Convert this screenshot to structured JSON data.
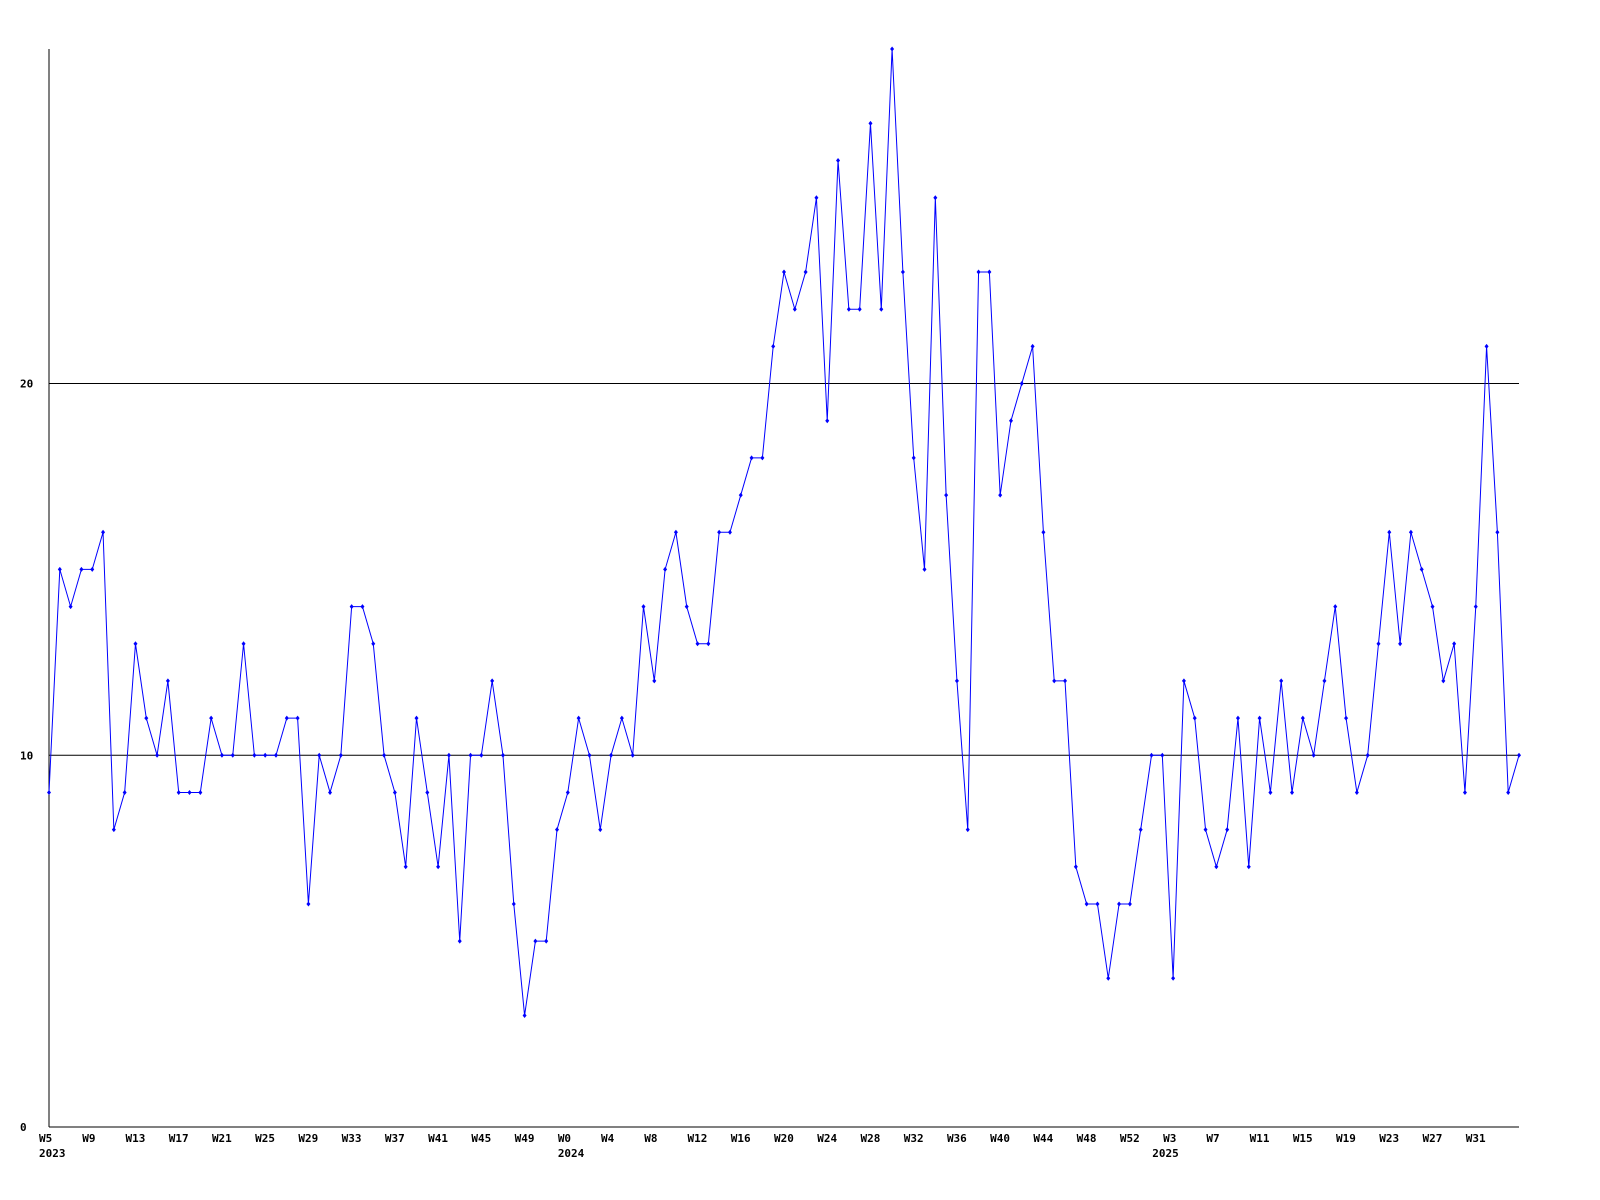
{
  "chart_data": {
    "type": "line",
    "color": "#0000ff",
    "ylim": [
      0,
      29
    ],
    "yticks": [
      0,
      10,
      20
    ],
    "grid": true,
    "categories": [
      "W5",
      null,
      null,
      null,
      "W9",
      null,
      null,
      null,
      "W13",
      null,
      null,
      null,
      "W17",
      null,
      null,
      null,
      "W21",
      null,
      null,
      null,
      "W25",
      null,
      null,
      null,
      "W29",
      null,
      null,
      null,
      "W33",
      null,
      null,
      null,
      "W37",
      null,
      null,
      null,
      "W41",
      null,
      null,
      null,
      "W45",
      null,
      null,
      null,
      "W49",
      null,
      null,
      null,
      "W0",
      null,
      null,
      null,
      "W4",
      null,
      null,
      null,
      "W8",
      null,
      null,
      null,
      "W12",
      null,
      null,
      null,
      "W16",
      null,
      null,
      null,
      "W20",
      null,
      null,
      null,
      "W24",
      null,
      null,
      null,
      "W28",
      null,
      null,
      null,
      "W32",
      null,
      null,
      null,
      "W36",
      null,
      null,
      null,
      "W40",
      null,
      null,
      null,
      "W44",
      null,
      null,
      null,
      "W48",
      null,
      null,
      null,
      "W52",
      null,
      null,
      null,
      "W3",
      null,
      null,
      null,
      "W7",
      null,
      null,
      null,
      "W11",
      null,
      null,
      null,
      "W15",
      null,
      null,
      null,
      "W19",
      null,
      null,
      null,
      "W23",
      null,
      null,
      null,
      "W27",
      null,
      null,
      null,
      "W31",
      null,
      null,
      null,
      null
    ],
    "years": [
      "2023",
      null,
      null,
      null,
      null,
      null,
      null,
      null,
      null,
      null,
      null,
      null,
      null,
      null,
      null,
      null,
      null,
      null,
      null,
      null,
      null,
      null,
      null,
      null,
      null,
      null,
      null,
      null,
      null,
      null,
      null,
      null,
      null,
      null,
      null,
      null,
      null,
      null,
      null,
      null,
      null,
      null,
      null,
      null,
      null,
      null,
      null,
      null,
      "2024",
      null,
      null,
      null,
      null,
      null,
      null,
      null,
      null,
      null,
      null,
      null,
      null,
      null,
      null,
      null,
      null,
      null,
      null,
      null,
      null,
      null,
      null,
      null,
      null,
      null,
      null,
      null,
      null,
      null,
      null,
      null,
      null,
      null,
      null,
      null,
      null,
      null,
      null,
      null,
      null,
      null,
      null,
      null,
      null,
      null,
      null,
      null,
      null,
      null,
      null,
      null,
      null,
      null,
      null,
      "2025",
      null,
      null,
      null,
      null,
      null,
      null,
      null,
      null,
      null,
      null,
      null,
      null,
      null,
      null,
      null,
      null,
      null,
      null,
      null,
      null,
      null,
      null,
      null,
      null,
      null,
      null,
      null,
      null,
      null,
      null,
      null,
      null,
      null,
      null
    ],
    "values": [
      9,
      15,
      14,
      15,
      15,
      16,
      8,
      9,
      13,
      11,
      10,
      12,
      9,
      9,
      9,
      11,
      10,
      10,
      13,
      10,
      10,
      10,
      11,
      11,
      6,
      10,
      9,
      10,
      14,
      14,
      13,
      10,
      9,
      7,
      11,
      9,
      7,
      10,
      5,
      10,
      10,
      12,
      10,
      6,
      3,
      5,
      5,
      8,
      9,
      11,
      10,
      8,
      10,
      11,
      10,
      14,
      12,
      15,
      16,
      14,
      13,
      13,
      16,
      16,
      17,
      18,
      18,
      21,
      23,
      22,
      23,
      25,
      19,
      26,
      22,
      22,
      27,
      22,
      29,
      23,
      18,
      15,
      25,
      17,
      12,
      8,
      23,
      23,
      17,
      19,
      20,
      21,
      16,
      12,
      12,
      7,
      6,
      6,
      4,
      6,
      6,
      8,
      10,
      10,
      4,
      12,
      11,
      8,
      7,
      8,
      11,
      7,
      11,
      9,
      12,
      9,
      11,
      10,
      12,
      14,
      11,
      9,
      10,
      13,
      16,
      13,
      16,
      15,
      14,
      12,
      13,
      9,
      14,
      21,
      16,
      9,
      10
    ]
  }
}
